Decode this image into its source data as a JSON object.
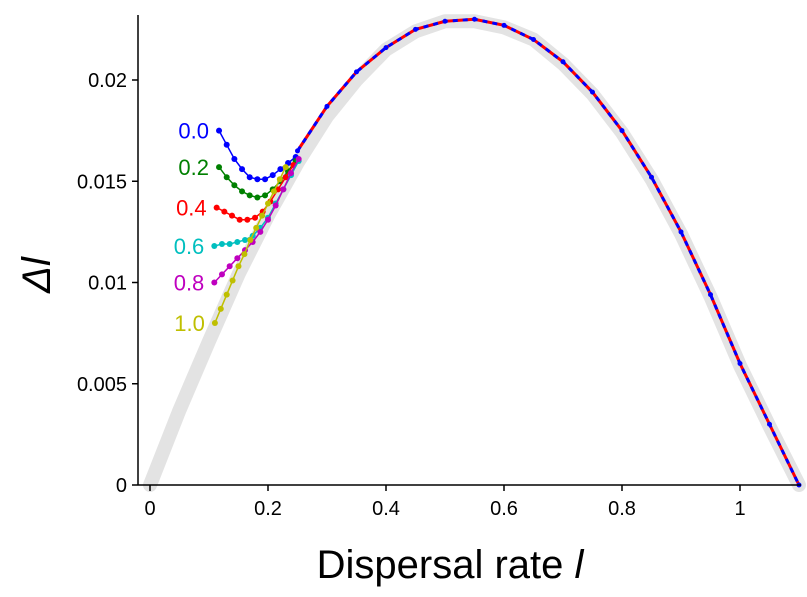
{
  "chart_data": {
    "type": "line",
    "xlabel": "Dispersal rate l",
    "ylabel": "Δl",
    "xlim": [
      0,
      1.1
    ],
    "ylim": [
      0,
      0.0235
    ],
    "x_ticks": [
      "0",
      "0.2",
      "0.4",
      "0.6",
      "0.8",
      "1"
    ],
    "y_ticks": [
      "0",
      "0.005",
      "0.01",
      "0.015",
      "0.02"
    ],
    "x_tick_values": [
      0,
      0.2,
      0.4,
      0.6,
      0.8,
      1.0
    ],
    "y_tick_values": [
      0,
      0.005,
      0.01,
      0.015,
      0.02
    ],
    "grid": false,
    "background_curve": {
      "color": "#e3e3e3",
      "x": [
        0.0,
        0.05,
        0.1,
        0.15,
        0.2,
        0.25,
        0.3,
        0.35,
        0.4,
        0.45,
        0.5,
        0.55,
        0.6,
        0.65,
        0.7,
        0.75,
        0.8,
        0.85,
        0.9,
        0.95,
        1.0,
        1.05,
        1.1
      ],
      "y": [
        0.0,
        0.0037,
        0.0071,
        0.0104,
        0.0133,
        0.0159,
        0.0182,
        0.02,
        0.0215,
        0.0224,
        0.0229,
        0.0229,
        0.0226,
        0.022,
        0.0208,
        0.0193,
        0.0174,
        0.0151,
        0.0124,
        0.0093,
        0.0059,
        0.0029,
        0.0
      ]
    },
    "envelope": {
      "x": [
        0.25,
        0.3,
        0.35,
        0.4,
        0.45,
        0.5,
        0.55,
        0.6,
        0.65,
        0.7,
        0.75,
        0.8,
        0.85,
        0.9,
        0.95,
        1.0,
        1.05,
        1.1
      ],
      "y": [
        0.0165,
        0.0187,
        0.0204,
        0.0216,
        0.0225,
        0.0229,
        0.023,
        0.0227,
        0.022,
        0.0209,
        0.0194,
        0.0175,
        0.0152,
        0.0125,
        0.0094,
        0.006,
        0.003,
        0.0
      ]
    },
    "series": [
      {
        "name": "0.0",
        "color": "#0000ff",
        "x": [
          0.117,
          0.13,
          0.143,
          0.156,
          0.169,
          0.182,
          0.195,
          0.208,
          0.221,
          0.234,
          0.247
        ],
        "y": [
          0.0175,
          0.0168,
          0.0161,
          0.0156,
          0.0152,
          0.0151,
          0.0151,
          0.0153,
          0.0156,
          0.0159,
          0.0162
        ]
      },
      {
        "name": "0.2",
        "color": "#008000",
        "x": [
          0.117,
          0.13,
          0.143,
          0.156,
          0.169,
          0.182,
          0.195,
          0.208,
          0.221,
          0.234,
          0.247
        ],
        "y": [
          0.0157,
          0.0152,
          0.0148,
          0.0145,
          0.0143,
          0.0142,
          0.0143,
          0.0146,
          0.015,
          0.0155,
          0.016
        ]
      },
      {
        "name": "0.4",
        "color": "#ff0000",
        "x": [
          0.113,
          0.126,
          0.139,
          0.152,
          0.165,
          0.178,
          0.191,
          0.204,
          0.217,
          0.23,
          0.243
        ],
        "y": [
          0.0137,
          0.0135,
          0.0133,
          0.0131,
          0.0131,
          0.0132,
          0.0135,
          0.014,
          0.0146,
          0.0152,
          0.0158
        ]
      },
      {
        "name": "0.6",
        "color": "#00bfbf",
        "x": [
          0.109,
          0.122,
          0.135,
          0.148,
          0.161,
          0.174,
          0.187,
          0.2,
          0.213,
          0.226,
          0.239,
          0.252
        ],
        "y": [
          0.0118,
          0.0119,
          0.0119,
          0.012,
          0.0121,
          0.0123,
          0.0127,
          0.0132,
          0.0139,
          0.0146,
          0.0153,
          0.016
        ]
      },
      {
        "name": "0.8",
        "color": "#bf00bf",
        "x": [
          0.109,
          0.122,
          0.135,
          0.148,
          0.161,
          0.174,
          0.187,
          0.2,
          0.213,
          0.226,
          0.239,
          0.252
        ],
        "y": [
          0.01,
          0.0104,
          0.0108,
          0.0112,
          0.0116,
          0.012,
          0.0125,
          0.0131,
          0.0138,
          0.0146,
          0.0154,
          0.0161
        ]
      },
      {
        "name": "1.0",
        "color": "#bfbf00",
        "x": [
          0.11,
          0.12,
          0.13,
          0.14,
          0.15,
          0.16,
          0.17,
          0.18,
          0.19,
          0.2,
          0.21,
          0.22,
          0.23
        ],
        "y": [
          0.008,
          0.0087,
          0.0094,
          0.0101,
          0.0108,
          0.0114,
          0.0121,
          0.0127,
          0.0133,
          0.0139,
          0.0145,
          0.0151,
          0.0157
        ]
      }
    ]
  }
}
